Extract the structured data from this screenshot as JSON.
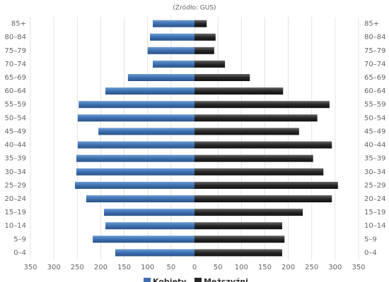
{
  "chart_data": {
    "type": "pyramid",
    "subtitle": "(Źródło: GUS)",
    "categories": [
      "85+",
      "80–84",
      "75–79",
      "70–74",
      "65–69",
      "60–64",
      "55–59",
      "50–54",
      "45–49",
      "40–44",
      "35–39",
      "30–34",
      "25–29",
      "20–24",
      "15–19",
      "10–14",
      "5–9",
      "0–4"
    ],
    "series": [
      {
        "name": "Kobiety",
        "color": "#3d6fae",
        "values": [
          -89,
          -95,
          -100,
          -89,
          -142,
          -190,
          -247,
          -249,
          -205,
          -249,
          -252,
          -252,
          -255,
          -231,
          -193,
          -190,
          -217,
          -169
        ]
      },
      {
        "name": "Mężczyźni",
        "color": "#262626",
        "values": [
          26,
          45,
          42,
          65,
          118,
          189,
          288,
          262,
          223,
          293,
          253,
          275,
          306,
          293,
          231,
          187,
          192,
          187
        ]
      }
    ],
    "xlim": [
      -350,
      350
    ],
    "xticks": [
      {
        "value": -350,
        "label": "350"
      },
      {
        "value": -300,
        "label": "300"
      },
      {
        "value": -250,
        "label": "250"
      },
      {
        "value": -200,
        "label": "200"
      },
      {
        "value": -150,
        "label": "150"
      },
      {
        "value": -100,
        "label": "100"
      },
      {
        "value": -50,
        "label": "50"
      },
      0,
      50,
      100,
      150,
      200,
      250,
      300,
      350
    ],
    "grid": true
  }
}
